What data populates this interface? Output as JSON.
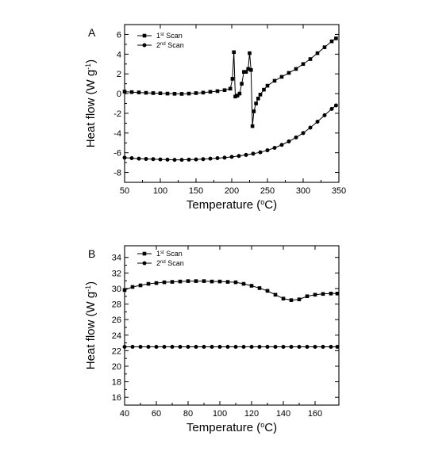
{
  "chart_data": [
    {
      "type": "line",
      "panel_label": "A",
      "xlabel": "Temperature (°C)",
      "ylabel": "Heat flow (W g⁻¹)",
      "xlim": [
        50,
        350
      ],
      "ylim": [
        -9,
        7
      ],
      "xticks": [
        50,
        100,
        150,
        200,
        250,
        300,
        350
      ],
      "yticks": [
        -8,
        -6,
        -4,
        -2,
        0,
        2,
        4,
        6
      ],
      "legend_position": "top-left",
      "grid": false,
      "series": [
        {
          "name": "1st Scan",
          "marker": "square",
          "points": [
            [
              50,
              0.2
            ],
            [
              60,
              0.15
            ],
            [
              70,
              0.12
            ],
            [
              80,
              0.08
            ],
            [
              90,
              0.05
            ],
            [
              100,
              0.03
            ],
            [
              110,
              0.0
            ],
            [
              120,
              -0.02
            ],
            [
              130,
              -0.03
            ],
            [
              140,
              0.0
            ],
            [
              150,
              0.05
            ],
            [
              160,
              0.1
            ],
            [
              170,
              0.18
            ],
            [
              180,
              0.25
            ],
            [
              190,
              0.35
            ],
            [
              198,
              0.5
            ],
            [
              201,
              1.5
            ],
            [
              203,
              4.2
            ],
            [
              205,
              -0.3
            ],
            [
              208,
              -0.2
            ],
            [
              211,
              0.0
            ],
            [
              214,
              1.0
            ],
            [
              217,
              2.2
            ],
            [
              220,
              2.2
            ],
            [
              223,
              2.5
            ],
            [
              225,
              4.1
            ],
            [
              227,
              2.4
            ],
            [
              229,
              -3.3
            ],
            [
              231,
              -1.8
            ],
            [
              234,
              -1.0
            ],
            [
              237,
              -0.5
            ],
            [
              240,
              -0.1
            ],
            [
              245,
              0.4
            ],
            [
              250,
              0.8
            ],
            [
              260,
              1.3
            ],
            [
              270,
              1.7
            ],
            [
              280,
              2.1
            ],
            [
              290,
              2.5
            ],
            [
              300,
              3.0
            ],
            [
              310,
              3.5
            ],
            [
              320,
              4.1
            ],
            [
              330,
              4.7
            ],
            [
              340,
              5.3
            ],
            [
              346,
              5.6
            ]
          ]
        },
        {
          "name": "2nd Scan",
          "marker": "circle",
          "points": [
            [
              50,
              -6.5
            ],
            [
              60,
              -6.55
            ],
            [
              70,
              -6.6
            ],
            [
              80,
              -6.63
            ],
            [
              90,
              -6.65
            ],
            [
              100,
              -6.68
            ],
            [
              110,
              -6.7
            ],
            [
              120,
              -6.72
            ],
            [
              130,
              -6.72
            ],
            [
              140,
              -6.7
            ],
            [
              150,
              -6.68
            ],
            [
              160,
              -6.65
            ],
            [
              170,
              -6.6
            ],
            [
              180,
              -6.55
            ],
            [
              190,
              -6.5
            ],
            [
              200,
              -6.42
            ],
            [
              210,
              -6.33
            ],
            [
              220,
              -6.22
            ],
            [
              230,
              -6.1
            ],
            [
              240,
              -5.95
            ],
            [
              250,
              -5.75
            ],
            [
              260,
              -5.5
            ],
            [
              270,
              -5.2
            ],
            [
              280,
              -4.85
            ],
            [
              290,
              -4.45
            ],
            [
              300,
              -4.0
            ],
            [
              310,
              -3.45
            ],
            [
              320,
              -2.85
            ],
            [
              330,
              -2.2
            ],
            [
              340,
              -1.55
            ],
            [
              346,
              -1.2
            ]
          ]
        }
      ]
    },
    {
      "type": "line",
      "panel_label": "B",
      "xlabel": "Temperature (°C)",
      "ylabel": "Heat flow (W g⁻¹)",
      "xlim": [
        40,
        175
      ],
      "ylim": [
        15,
        35.5
      ],
      "xticks": [
        40,
        60,
        80,
        100,
        120,
        140,
        160
      ],
      "yticks": [
        16,
        18,
        20,
        22,
        24,
        26,
        28,
        30,
        32,
        34
      ],
      "legend_position": "top-left",
      "grid": false,
      "series": [
        {
          "name": "1st Scan",
          "marker": "square",
          "points": [
            [
              40,
              29.8
            ],
            [
              45,
              30.2
            ],
            [
              50,
              30.4
            ],
            [
              55,
              30.6
            ],
            [
              60,
              30.7
            ],
            [
              65,
              30.8
            ],
            [
              70,
              30.85
            ],
            [
              75,
              30.9
            ],
            [
              80,
              30.95
            ],
            [
              85,
              30.95
            ],
            [
              90,
              30.95
            ],
            [
              95,
              30.9
            ],
            [
              100,
              30.9
            ],
            [
              105,
              30.85
            ],
            [
              110,
              30.8
            ],
            [
              115,
              30.6
            ],
            [
              120,
              30.35
            ],
            [
              125,
              30.05
            ],
            [
              130,
              29.7
            ],
            [
              135,
              29.2
            ],
            [
              140,
              28.7
            ],
            [
              145,
              28.5
            ],
            [
              150,
              28.6
            ],
            [
              155,
              29.0
            ],
            [
              160,
              29.2
            ],
            [
              165,
              29.3
            ],
            [
              170,
              29.35
            ],
            [
              174,
              29.35
            ]
          ]
        },
        {
          "name": "2nd Scan",
          "marker": "circle",
          "points": [
            [
              40,
              22.5
            ],
            [
              45,
              22.5
            ],
            [
              50,
              22.5
            ],
            [
              55,
              22.5
            ],
            [
              60,
              22.5
            ],
            [
              65,
              22.5
            ],
            [
              70,
              22.5
            ],
            [
              75,
              22.5
            ],
            [
              80,
              22.5
            ],
            [
              85,
              22.5
            ],
            [
              90,
              22.5
            ],
            [
              95,
              22.5
            ],
            [
              100,
              22.5
            ],
            [
              105,
              22.5
            ],
            [
              110,
              22.5
            ],
            [
              115,
              22.5
            ],
            [
              120,
              22.5
            ],
            [
              125,
              22.5
            ],
            [
              130,
              22.5
            ],
            [
              135,
              22.5
            ],
            [
              140,
              22.5
            ],
            [
              145,
              22.5
            ],
            [
              150,
              22.5
            ],
            [
              155,
              22.5
            ],
            [
              160,
              22.5
            ],
            [
              165,
              22.5
            ],
            [
              170,
              22.5
            ],
            [
              174,
              22.5
            ]
          ]
        }
      ]
    }
  ]
}
